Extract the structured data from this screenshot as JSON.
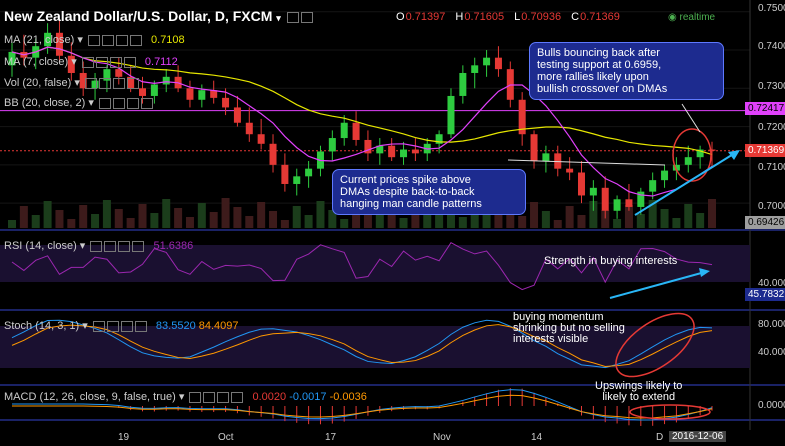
{
  "header": {
    "title": "New Zealand Dollar/U.S. Dollar, D, FXCM",
    "ohlc": [
      {
        "k": "O",
        "v": "0.71397"
      },
      {
        "k": "H",
        "v": "0.71605"
      },
      {
        "k": "L",
        "v": "0.70936"
      },
      {
        "k": "C",
        "v": "0.71369"
      }
    ],
    "realtime": "realtime"
  },
  "indicators": {
    "ma21": {
      "label": "MA (21, close)",
      "value": "0.7108",
      "color": "#e6e600"
    },
    "ma7": {
      "label": "MA (7, close)",
      "value": "0.7112",
      "color": "#e040fb"
    },
    "vol": {
      "label": "Vol (20, false)"
    },
    "bb": {
      "label": "BB (20, close, 2)"
    },
    "rsi": {
      "label": "RSI (14, close)",
      "value": "51.6386",
      "tag": "45.7832"
    },
    "stoch": {
      "label": "Stoch (14, 3, 1)",
      "k": "83.5520",
      "d": "84.4097"
    },
    "macd": {
      "label": "MACD (12, 26, close, 9, false, true)",
      "v1": "0.0020",
      "v2": "-0.0017",
      "v3": "-0.0036"
    }
  },
  "price_axis": {
    "ticks": [
      "0.75000",
      "0.74000",
      "0.73000",
      "0.72000",
      "0.71000",
      "0.70000"
    ],
    "tags": [
      {
        "text": "0.72417",
        "color": "#e040fb"
      },
      {
        "text": "0.71369",
        "color": "#e53935"
      },
      {
        "text": "0.69426",
        "color": "#9e9e9e"
      }
    ]
  },
  "rsi_axis": {
    "ticks": [
      "40.0000"
    ]
  },
  "stoch_axis": {
    "ticks": [
      "80.0000",
      "40.0000"
    ]
  },
  "macd_axis": {
    "ticks": [
      "0.0000"
    ]
  },
  "time_axis": {
    "labels": [
      "19",
      "Oct",
      "17",
      "Nov",
      "14",
      "D"
    ],
    "date_tag": "2016-12-06"
  },
  "annotations": {
    "bulls": "Bulls bouncing back after\ntesting support at 0.6959,\nmore rallies likely upon\nbullish crossover on DMAs",
    "current": "Current prices spike above\nDMAs despite back-to-back\nhanging man candle patterns",
    "strength": "Strength in buying interests",
    "momentum": "buying momentum\nshrinking but no selling\ninterests visible",
    "upswings": "Upswings likely to\nlikely to extend"
  },
  "chart_data": {
    "type": "candlestick",
    "symbol": "NZDUSD",
    "timeframe": "D",
    "ylim": [
      0.6935,
      0.7515
    ],
    "ohlc": [
      [
        0.736,
        0.742,
        0.733,
        0.7395
      ],
      [
        0.7395,
        0.744,
        0.736,
        0.738
      ],
      [
        0.738,
        0.743,
        0.735,
        0.741
      ],
      [
        0.741,
        0.747,
        0.739,
        0.7445
      ],
      [
        0.7445,
        0.748,
        0.737,
        0.7385
      ],
      [
        0.7385,
        0.742,
        0.732,
        0.734
      ],
      [
        0.734,
        0.737,
        0.728,
        0.73
      ],
      [
        0.73,
        0.734,
        0.727,
        0.732
      ],
      [
        0.732,
        0.736,
        0.729,
        0.735
      ],
      [
        0.735,
        0.738,
        0.731,
        0.733
      ],
      [
        0.733,
        0.736,
        0.729,
        0.73
      ],
      [
        0.73,
        0.733,
        0.726,
        0.728
      ],
      [
        0.728,
        0.732,
        0.726,
        0.731
      ],
      [
        0.731,
        0.735,
        0.729,
        0.733
      ],
      [
        0.733,
        0.736,
        0.729,
        0.73
      ],
      [
        0.73,
        0.732,
        0.725,
        0.727
      ],
      [
        0.727,
        0.731,
        0.725,
        0.7295
      ],
      [
        0.7295,
        0.732,
        0.726,
        0.7275
      ],
      [
        0.7275,
        0.73,
        0.723,
        0.725
      ],
      [
        0.725,
        0.728,
        0.72,
        0.721
      ],
      [
        0.721,
        0.725,
        0.716,
        0.718
      ],
      [
        0.718,
        0.722,
        0.714,
        0.7155
      ],
      [
        0.7155,
        0.718,
        0.708,
        0.71
      ],
      [
        0.71,
        0.713,
        0.703,
        0.705
      ],
      [
        0.705,
        0.709,
        0.702,
        0.707
      ],
      [
        0.707,
        0.711,
        0.704,
        0.709
      ],
      [
        0.709,
        0.715,
        0.707,
        0.7135
      ],
      [
        0.7135,
        0.719,
        0.711,
        0.717
      ],
      [
        0.717,
        0.723,
        0.715,
        0.721
      ],
      [
        0.721,
        0.724,
        0.715,
        0.7165
      ],
      [
        0.7165,
        0.719,
        0.711,
        0.713
      ],
      [
        0.713,
        0.717,
        0.71,
        0.715
      ],
      [
        0.715,
        0.717,
        0.711,
        0.712
      ],
      [
        0.712,
        0.716,
        0.71,
        0.714
      ],
      [
        0.714,
        0.717,
        0.711,
        0.713
      ],
      [
        0.713,
        0.717,
        0.711,
        0.7155
      ],
      [
        0.7155,
        0.719,
        0.713,
        0.718
      ],
      [
        0.718,
        0.73,
        0.717,
        0.728
      ],
      [
        0.728,
        0.736,
        0.726,
        0.734
      ],
      [
        0.734,
        0.738,
        0.73,
        0.736
      ],
      [
        0.736,
        0.74,
        0.733,
        0.738
      ],
      [
        0.738,
        0.741,
        0.733,
        0.735
      ],
      [
        0.735,
        0.737,
        0.725,
        0.727
      ],
      [
        0.727,
        0.729,
        0.715,
        0.718
      ],
      [
        0.718,
        0.719,
        0.709,
        0.711
      ],
      [
        0.711,
        0.715,
        0.708,
        0.713
      ],
      [
        0.713,
        0.715,
        0.707,
        0.709
      ],
      [
        0.709,
        0.712,
        0.706,
        0.708
      ],
      [
        0.708,
        0.711,
        0.7,
        0.702
      ],
      [
        0.702,
        0.706,
        0.698,
        0.704
      ],
      [
        0.704,
        0.707,
        0.696,
        0.698
      ],
      [
        0.698,
        0.702,
        0.6959,
        0.701
      ],
      [
        0.701,
        0.705,
        0.698,
        0.699
      ],
      [
        0.699,
        0.704,
        0.697,
        0.703
      ],
      [
        0.703,
        0.708,
        0.701,
        0.706
      ],
      [
        0.706,
        0.71,
        0.704,
        0.7085
      ],
      [
        0.7085,
        0.712,
        0.706,
        0.71
      ],
      [
        0.71,
        0.715,
        0.708,
        0.712
      ],
      [
        0.712,
        0.715,
        0.709,
        0.714
      ],
      [
        0.714,
        0.71605,
        0.70936,
        0.71369
      ]
    ]
  }
}
